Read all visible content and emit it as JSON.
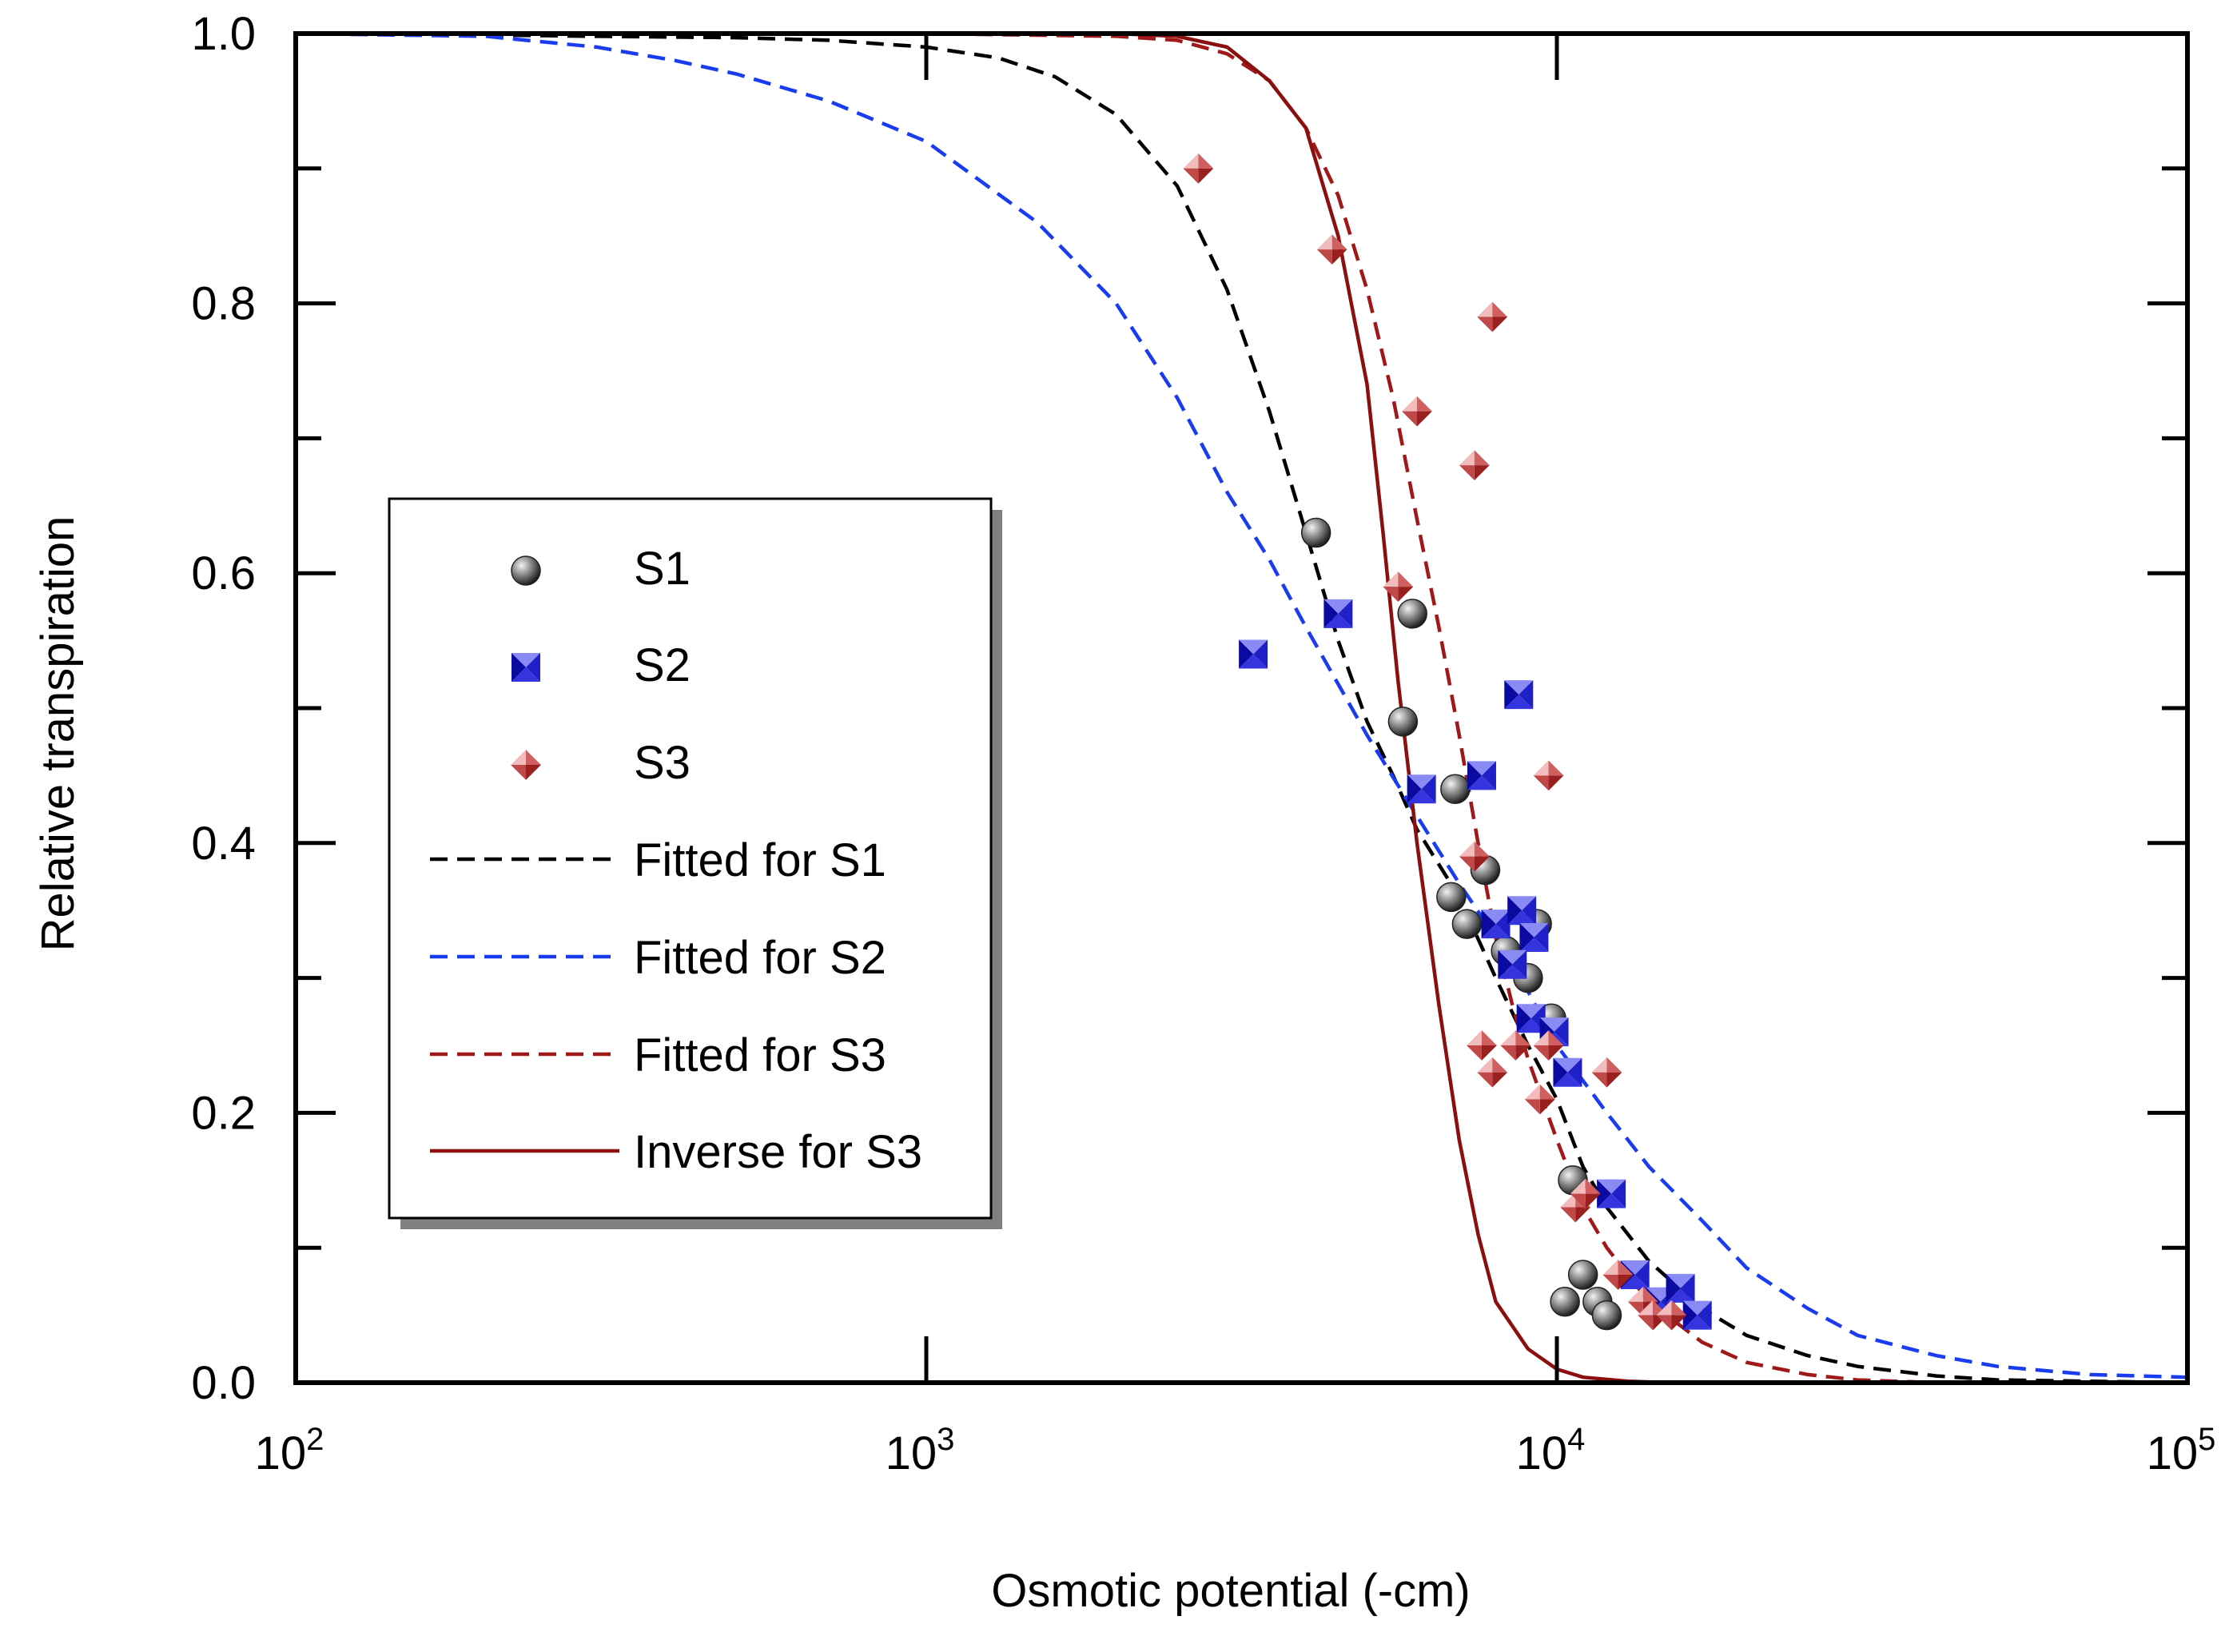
{
  "chart_data": {
    "type": "scatter",
    "title": "",
    "xlabel": "Osmotic potential (-cm)",
    "ylabel": "Relative transpiration",
    "x_scale": "log",
    "xlim": [
      100,
      100000
    ],
    "ylim": [
      0,
      1
    ],
    "x_ticks": [
      {
        "value": 100,
        "base": "10",
        "exp": "2"
      },
      {
        "value": 1000,
        "base": "10",
        "exp": "3"
      },
      {
        "value": 10000,
        "base": "10",
        "exp": "4"
      },
      {
        "value": 100000,
        "base": "10",
        "exp": "5"
      }
    ],
    "y_ticks": [
      {
        "value": 0.0,
        "label": "0.0"
      },
      {
        "value": 0.2,
        "label": "0.2"
      },
      {
        "value": 0.4,
        "label": "0.4"
      },
      {
        "value": 0.6,
        "label": "0.6"
      },
      {
        "value": 0.8,
        "label": "0.8"
      },
      {
        "value": 1.0,
        "label": "1.0"
      }
    ],
    "grid": false,
    "legend_position": "left-middle",
    "series": [
      {
        "name": "S1",
        "kind": "scatter",
        "marker": "circle",
        "color": "#606060",
        "points": [
          [
            4150,
            0.63
          ],
          [
            5900,
            0.57
          ],
          [
            5700,
            0.49
          ],
          [
            6900,
            0.44
          ],
          [
            6800,
            0.36
          ],
          [
            7200,
            0.34
          ],
          [
            7700,
            0.38
          ],
          [
            8300,
            0.32
          ],
          [
            9300,
            0.34
          ],
          [
            9000,
            0.3
          ],
          [
            9800,
            0.27
          ],
          [
            10600,
            0.15
          ],
          [
            11000,
            0.08
          ],
          [
            10300,
            0.06
          ],
          [
            11600,
            0.06
          ],
          [
            12000,
            0.05
          ]
        ]
      },
      {
        "name": "S2",
        "kind": "scatter",
        "marker": "square",
        "color": "#3a3af0",
        "points": [
          [
            3300,
            0.54
          ],
          [
            4500,
            0.57
          ],
          [
            6100,
            0.44
          ],
          [
            7600,
            0.45
          ],
          [
            8700,
            0.51
          ],
          [
            8000,
            0.34
          ],
          [
            8800,
            0.35
          ],
          [
            9200,
            0.33
          ],
          [
            8500,
            0.31
          ],
          [
            9100,
            0.27
          ],
          [
            9900,
            0.26
          ],
          [
            10400,
            0.23
          ],
          [
            12200,
            0.14
          ],
          [
            13300,
            0.08
          ],
          [
            14600,
            0.06
          ],
          [
            15700,
            0.07
          ],
          [
            16700,
            0.05
          ]
        ]
      },
      {
        "name": "S3",
        "kind": "scatter",
        "marker": "diamond",
        "color": "#c04848",
        "points": [
          [
            2700,
            0.9
          ],
          [
            4400,
            0.84
          ],
          [
            7900,
            0.79
          ],
          [
            6000,
            0.72
          ],
          [
            7400,
            0.68
          ],
          [
            5600,
            0.59
          ],
          [
            9700,
            0.45
          ],
          [
            7400,
            0.39
          ],
          [
            7600,
            0.25
          ],
          [
            7900,
            0.23
          ],
          [
            8600,
            0.25
          ],
          [
            9400,
            0.21
          ],
          [
            9700,
            0.25
          ],
          [
            12000,
            0.23
          ],
          [
            10700,
            0.13
          ],
          [
            11100,
            0.14
          ],
          [
            12500,
            0.08
          ],
          [
            13700,
            0.06
          ],
          [
            14200,
            0.05
          ],
          [
            15200,
            0.05
          ]
        ]
      },
      {
        "name": "Fitted for S1",
        "kind": "line",
        "color": "#000000",
        "dash": "22,12",
        "points": [
          [
            100,
            1.0
          ],
          [
            200,
            0.999
          ],
          [
            300,
            0.998
          ],
          [
            500,
            0.997
          ],
          [
            700,
            0.995
          ],
          [
            1000,
            0.99
          ],
          [
            1300,
            0.982
          ],
          [
            1600,
            0.968
          ],
          [
            2000,
            0.94
          ],
          [
            2500,
            0.887
          ],
          [
            3000,
            0.81
          ],
          [
            3500,
            0.72
          ],
          [
            4000,
            0.63
          ],
          [
            4500,
            0.55
          ],
          [
            5000,
            0.49
          ],
          [
            5500,
            0.45
          ],
          [
            6000,
            0.41
          ],
          [
            7000,
            0.36
          ],
          [
            8000,
            0.3
          ],
          [
            9000,
            0.25
          ],
          [
            10000,
            0.21
          ],
          [
            11000,
            0.16
          ],
          [
            12000,
            0.13
          ],
          [
            14000,
            0.09
          ],
          [
            17000,
            0.055
          ],
          [
            20000,
            0.035
          ],
          [
            25000,
            0.02
          ],
          [
            30000,
            0.012
          ],
          [
            40000,
            0.005
          ],
          [
            50000,
            0.002
          ],
          [
            100000,
            0.0
          ]
        ]
      },
      {
        "name": "Fitted for S2",
        "kind": "line",
        "color": "#1a3cf0",
        "dash": "22,12",
        "points": [
          [
            100,
            1.0
          ],
          [
            200,
            0.998
          ],
          [
            300,
            0.99
          ],
          [
            400,
            0.98
          ],
          [
            500,
            0.97
          ],
          [
            700,
            0.95
          ],
          [
            1000,
            0.92
          ],
          [
            1500,
            0.86
          ],
          [
            2000,
            0.8
          ],
          [
            2500,
            0.73
          ],
          [
            3000,
            0.66
          ],
          [
            3500,
            0.61
          ],
          [
            4000,
            0.56
          ],
          [
            5000,
            0.48
          ],
          [
            6000,
            0.42
          ],
          [
            7000,
            0.37
          ],
          [
            8000,
            0.33
          ],
          [
            9000,
            0.29
          ],
          [
            10000,
            0.25
          ],
          [
            12000,
            0.2
          ],
          [
            14000,
            0.16
          ],
          [
            17000,
            0.12
          ],
          [
            20000,
            0.085
          ],
          [
            25000,
            0.055
          ],
          [
            30000,
            0.035
          ],
          [
            40000,
            0.02
          ],
          [
            50000,
            0.012
          ],
          [
            70000,
            0.006
          ],
          [
            100000,
            0.004
          ]
        ]
      },
      {
        "name": "Fitted for S3",
        "kind": "line",
        "color": "#a01818",
        "dash": "22,12",
        "points": [
          [
            100,
            1.0
          ],
          [
            1000,
            1.0
          ],
          [
            2000,
            0.998
          ],
          [
            2500,
            0.995
          ],
          [
            3000,
            0.985
          ],
          [
            3500,
            0.965
          ],
          [
            4000,
            0.93
          ],
          [
            4500,
            0.88
          ],
          [
            5000,
            0.81
          ],
          [
            5500,
            0.73
          ],
          [
            6000,
            0.64
          ],
          [
            6500,
            0.56
          ],
          [
            7000,
            0.48
          ],
          [
            7500,
            0.4
          ],
          [
            8000,
            0.33
          ],
          [
            8500,
            0.28
          ],
          [
            9000,
            0.24
          ],
          [
            10000,
            0.18
          ],
          [
            11000,
            0.13
          ],
          [
            12000,
            0.1
          ],
          [
            14000,
            0.06
          ],
          [
            17000,
            0.03
          ],
          [
            20000,
            0.015
          ],
          [
            25000,
            0.006
          ],
          [
            30000,
            0.002
          ],
          [
            40000,
            0.0
          ],
          [
            100000,
            0.0
          ]
        ]
      },
      {
        "name": "Inverse for S3",
        "kind": "line",
        "color": "#8b0f0f",
        "dash": "",
        "points": [
          [
            100,
            1.0
          ],
          [
            1000,
            1.0
          ],
          [
            2000,
            1.0
          ],
          [
            2500,
            0.998
          ],
          [
            3000,
            0.99
          ],
          [
            3500,
            0.965
          ],
          [
            4000,
            0.93
          ],
          [
            4500,
            0.85
          ],
          [
            5000,
            0.74
          ],
          [
            5300,
            0.63
          ],
          [
            5600,
            0.52
          ],
          [
            6000,
            0.4
          ],
          [
            6500,
            0.28
          ],
          [
            7000,
            0.18
          ],
          [
            7500,
            0.11
          ],
          [
            8000,
            0.06
          ],
          [
            9000,
            0.025
          ],
          [
            10000,
            0.01
          ],
          [
            11000,
            0.004
          ],
          [
            13000,
            0.001
          ],
          [
            15000,
            0.0
          ],
          [
            100000,
            0.0
          ]
        ]
      }
    ]
  }
}
